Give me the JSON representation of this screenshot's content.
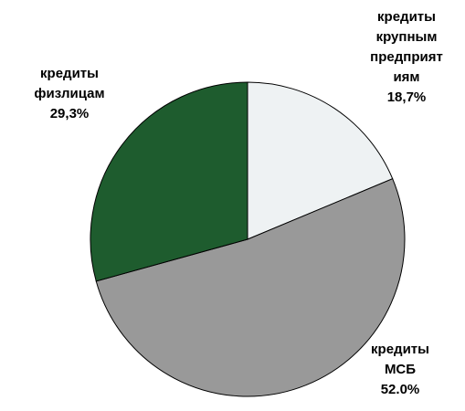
{
  "chart_data": {
    "type": "pie",
    "categories": [
      "кредиты крупным предприятиям",
      "кредиты МСБ",
      "кредиты физлицам"
    ],
    "values": [
      18.7,
      52.0,
      29.3
    ],
    "value_labels": [
      "18,7%",
      "52.0%",
      "29,3%"
    ],
    "colors": [
      "#eef2f3",
      "#999999",
      "#1e5c2e"
    ]
  }
}
